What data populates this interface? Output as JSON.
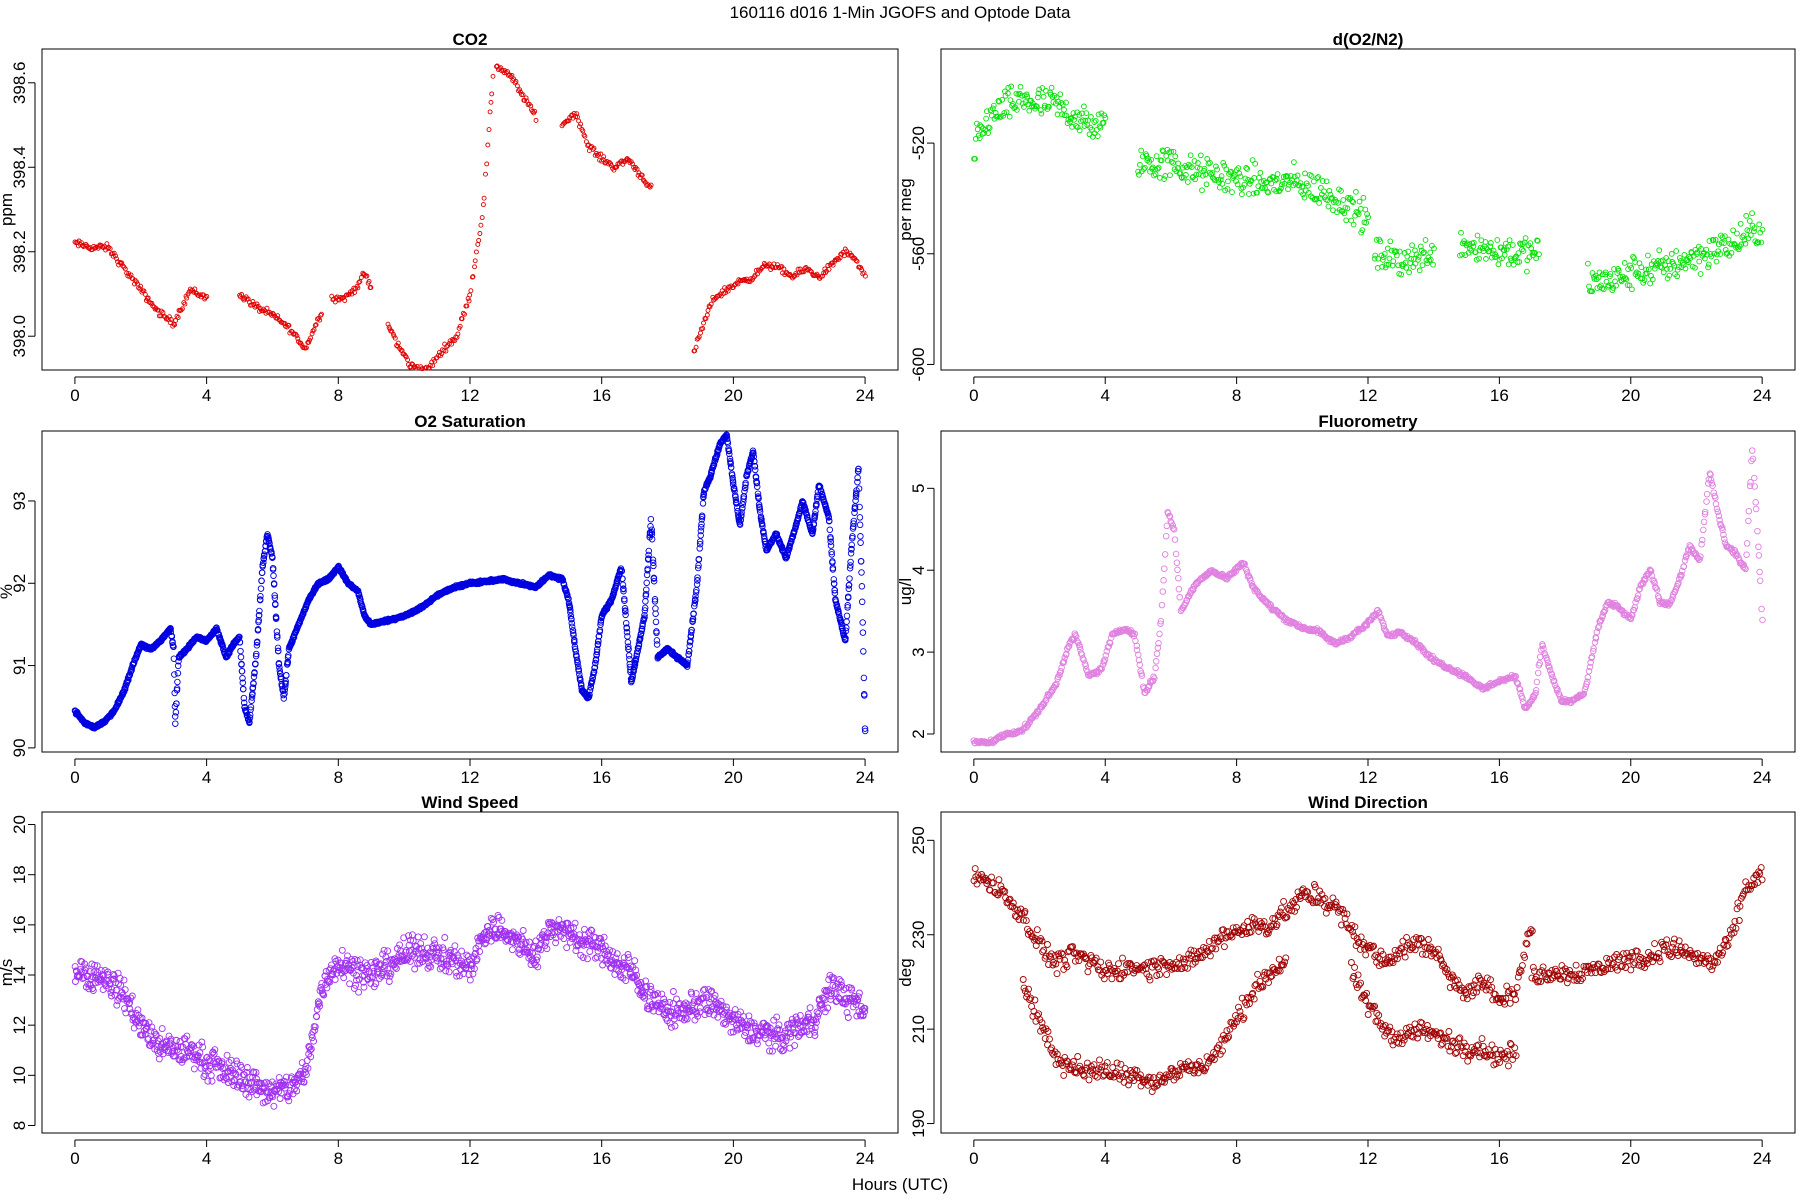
{
  "figure": {
    "title": "160116   d016   1-Min  JGOFS and Optode Data",
    "xlabel": "Hours (UTC)"
  },
  "chart_data": [
    {
      "type": "scatter",
      "title": "CO2",
      "xlabel": "",
      "ylabel": "ppm",
      "xlim": [
        -1,
        25
      ],
      "ylim": [
        397.92,
        398.68
      ],
      "xticks": [
        0,
        4,
        8,
        12,
        16,
        20,
        24
      ],
      "yticks": [
        398.0,
        398.2,
        398.4,
        398.6
      ],
      "ytick_labels": [
        "398.0",
        "398.2",
        "398.4",
        "398.6"
      ],
      "color": "#e00000",
      "marker_size": 2.0,
      "spread": 0.012,
      "points_per_hour": 30,
      "series": [
        {
          "x": [
            0,
            0.5,
            1.0,
            1.5,
            2.0,
            2.5,
            3.0,
            3.5,
            4.0
          ],
          "y": [
            398.22,
            398.21,
            398.21,
            398.16,
            398.11,
            398.06,
            398.03,
            398.11,
            398.09
          ]
        },
        {
          "x": [
            5.0,
            5.5,
            6.0,
            6.5,
            7.0,
            7.5
          ],
          "y": [
            398.1,
            398.07,
            398.05,
            398.02,
            397.97,
            398.06
          ]
        },
        {
          "x": [
            7.8,
            8.2,
            8.6,
            8.8,
            9.0
          ],
          "y": [
            398.09,
            398.09,
            398.12,
            398.15,
            398.11
          ]
        },
        {
          "x": [
            9.5,
            9.8,
            10.2,
            10.7,
            11.2,
            11.6,
            12.0,
            12.4,
            12.7
          ],
          "y": [
            398.03,
            397.98,
            397.93,
            397.92,
            397.97,
            398.0,
            398.1,
            398.3,
            398.62
          ]
        },
        {
          "x": [
            12.8,
            13.2,
            13.6,
            14.0
          ],
          "y": [
            398.64,
            398.62,
            398.57,
            398.52
          ]
        },
        {
          "x": [
            14.8,
            15.2,
            15.6,
            16.0,
            16.4,
            16.8,
            17.2,
            17.5
          ],
          "y": [
            398.5,
            398.53,
            398.45,
            398.42,
            398.4,
            398.42,
            398.38,
            398.35
          ]
        },
        {
          "x": [
            18.8,
            19.1,
            19.4,
            19.8,
            20.2,
            20.6,
            21.0,
            21.4,
            21.8,
            22.2,
            22.6,
            23.0,
            23.4,
            23.7,
            24.0
          ],
          "y": [
            397.96,
            398.03,
            398.09,
            398.11,
            398.13,
            398.14,
            398.17,
            398.16,
            398.14,
            398.16,
            398.14,
            398.17,
            398.2,
            398.18,
            398.14
          ]
        }
      ]
    },
    {
      "type": "scatter",
      "title": "d(O2/N2)",
      "xlabel": "",
      "ylabel": "per meg",
      "xlim": [
        -1,
        25
      ],
      "ylim": [
        -602,
        -486
      ],
      "xticks": [
        0,
        4,
        8,
        12,
        16,
        20,
        24
      ],
      "yticks": [
        -600,
        -560,
        -520
      ],
      "ytick_labels": [
        "-600",
        "-560",
        "-520"
      ],
      "color": "#00e000",
      "marker_size": 2.4,
      "spread": 9,
      "points_per_hour": 35,
      "series": [
        {
          "x": [
            0,
            0.5,
            1.0,
            1.5,
            2.0,
            2.5,
            3.0,
            3.5,
            4.0
          ],
          "y": [
            -522,
            -510,
            -507,
            -504,
            -506,
            -506,
            -510,
            -514,
            -514
          ]
        },
        {
          "x": [
            5.0,
            5.5,
            6.0,
            6.5,
            7.0,
            7.5,
            8.0,
            8.5,
            9.0,
            9.5,
            10.0,
            10.5,
            11.0,
            11.5,
            12.0
          ],
          "y": [
            -526,
            -528,
            -527,
            -530,
            -531,
            -532,
            -533,
            -534,
            -535,
            -534,
            -535,
            -537,
            -540,
            -543,
            -548
          ]
        },
        {
          "x": [
            12.2,
            12.7,
            13.2,
            13.7,
            14.0
          ],
          "y": [
            -560,
            -562,
            -562,
            -561,
            -558
          ]
        },
        {
          "x": [
            14.8,
            15.3,
            15.8,
            16.3,
            16.8,
            17.2
          ],
          "y": [
            -556,
            -557,
            -559,
            -559,
            -560,
            -560
          ]
        },
        {
          "x": [
            18.7,
            19.2,
            19.7,
            20.2,
            20.7,
            21.2,
            21.7,
            22.2,
            22.7,
            23.2,
            23.7,
            24.0
          ],
          "y": [
            -570,
            -570,
            -569,
            -566,
            -566,
            -564,
            -562,
            -560,
            -558,
            -556,
            -552,
            -551
          ]
        }
      ]
    },
    {
      "type": "scatter",
      "title": "O2 Saturation",
      "xlabel": "",
      "ylabel": "%",
      "xlim": [
        -1,
        25
      ],
      "ylim": [
        89.95,
        93.85
      ],
      "xticks": [
        0,
        4,
        8,
        12,
        16,
        20,
        24
      ],
      "yticks": [
        90,
        91,
        92,
        93
      ],
      "ytick_labels": [
        "90",
        "91",
        "92",
        "93"
      ],
      "color": "#0000e0",
      "marker_size": 2.8,
      "spread": 0.025,
      "points_per_hour": 100,
      "series": [
        {
          "x": [
            0,
            0.3,
            0.6,
            0.9,
            1.2,
            1.5,
            1.8,
            2.0,
            2.3,
            2.6,
            2.9,
            3.0,
            3.05,
            3.15,
            3.4,
            3.7,
            4.0,
            4.3,
            4.6,
            4.8,
            5.0,
            5.15,
            5.3,
            5.5,
            5.7,
            5.85,
            6.0,
            6.2,
            6.35,
            6.5,
            6.8,
            7.1,
            7.4,
            7.7,
            8.0,
            8.3,
            8.6,
            8.8,
            9.0,
            9.5,
            10.0,
            10.5,
            11.0,
            11.5,
            12.0,
            12.5,
            13.0,
            13.5,
            14.0,
            14.4,
            14.8,
            15.0,
            15.2,
            15.4,
            15.6,
            15.8,
            16.0,
            16.3,
            16.6,
            16.75,
            16.9,
            17.1,
            17.3,
            17.5,
            17.7,
            18.0,
            18.3,
            18.6,
            18.9,
            19.1,
            19.3,
            19.6,
            19.8,
            20.0,
            20.2,
            20.4,
            20.6,
            20.8,
            21.0,
            21.3,
            21.6,
            21.9,
            22.1,
            22.4,
            22.6,
            22.9,
            23.1,
            23.4,
            23.6,
            23.8,
            23.9,
            24.0
          ],
          "y": [
            90.45,
            90.3,
            90.25,
            90.32,
            90.45,
            90.7,
            91.05,
            91.25,
            91.2,
            91.3,
            91.45,
            91.2,
            90.3,
            91.1,
            91.2,
            91.35,
            91.3,
            91.45,
            91.1,
            91.25,
            91.35,
            90.5,
            90.3,
            91.1,
            92.2,
            92.6,
            92.3,
            91.0,
            90.6,
            91.2,
            91.5,
            91.8,
            92.0,
            92.05,
            92.2,
            92.0,
            91.9,
            91.6,
            91.5,
            91.55,
            91.6,
            91.7,
            91.85,
            91.95,
            92.0,
            92.02,
            92.05,
            92.0,
            91.95,
            92.1,
            92.05,
            91.8,
            91.2,
            90.7,
            90.6,
            91.0,
            91.6,
            91.8,
            92.2,
            91.5,
            90.8,
            91.2,
            91.6,
            92.8,
            91.1,
            91.2,
            91.1,
            91.0,
            92.0,
            93.1,
            93.3,
            93.7,
            93.8,
            93.2,
            92.7,
            93.3,
            93.6,
            92.9,
            92.4,
            92.6,
            92.3,
            92.7,
            93.0,
            92.6,
            93.2,
            92.8,
            91.8,
            91.3,
            92.5,
            93.4,
            92.0,
            90.2
          ]
        }
      ]
    },
    {
      "type": "scatter",
      "title": "Fluorometry",
      "xlabel": "",
      "ylabel": "ug/l",
      "xlim": [
        -1,
        25
      ],
      "ylim": [
        1.78,
        5.7
      ],
      "xticks": [
        0,
        4,
        8,
        12,
        16,
        20,
        24
      ],
      "yticks": [
        2,
        3,
        4,
        5
      ],
      "ytick_labels": [
        "2",
        "3",
        "4",
        "5"
      ],
      "color": "#e080e0",
      "marker_size": 2.8,
      "spread": 0.04,
      "points_per_hour": 40,
      "series": [
        {
          "x": [
            0,
            0.5,
            1.0,
            1.5,
            2.0,
            2.5,
            2.9,
            3.1,
            3.5,
            3.9,
            4.2,
            4.6,
            4.9,
            5.2,
            5.5,
            5.7,
            5.9,
            6.1,
            6.3,
            6.7,
            7.2,
            7.7,
            8.2,
            8.5,
            8.9,
            9.5,
            10.0,
            10.5,
            11.0,
            11.5,
            12.0,
            12.3,
            12.6,
            13.0,
            13.5,
            14.0,
            14.5,
            15.0,
            15.5,
            16.0,
            16.5,
            16.8,
            17.1,
            17.3,
            17.6,
            17.9,
            18.2,
            18.6,
            19.0,
            19.3,
            19.6,
            20.0,
            20.3,
            20.6,
            20.9,
            21.2,
            21.5,
            21.8,
            22.1,
            22.4,
            22.6,
            22.9,
            23.2,
            23.5,
            23.7,
            23.9,
            24.0
          ],
          "y": [
            1.9,
            1.9,
            2.0,
            2.05,
            2.3,
            2.6,
            3.1,
            3.2,
            2.7,
            2.8,
            3.2,
            3.3,
            3.2,
            2.5,
            2.7,
            3.4,
            4.7,
            4.5,
            3.5,
            3.8,
            4.0,
            3.9,
            4.1,
            3.8,
            3.6,
            3.4,
            3.3,
            3.25,
            3.1,
            3.2,
            3.35,
            3.5,
            3.2,
            3.25,
            3.1,
            2.9,
            2.8,
            2.7,
            2.55,
            2.65,
            2.7,
            2.3,
            2.5,
            3.1,
            2.7,
            2.4,
            2.4,
            2.5,
            3.3,
            3.6,
            3.55,
            3.4,
            3.8,
            4.0,
            3.6,
            3.6,
            3.9,
            4.3,
            4.1,
            5.2,
            4.8,
            4.3,
            4.2,
            4.0,
            5.5,
            4.2,
            3.4
          ]
        }
      ]
    },
    {
      "type": "scatter",
      "title": "Wind Speed",
      "xlabel": "",
      "ylabel": "m/s",
      "xlim": [
        -1,
        25
      ],
      "ylim": [
        7.7,
        20.5
      ],
      "xticks": [
        0,
        4,
        8,
        12,
        16,
        20,
        24
      ],
      "yticks": [
        8,
        10,
        12,
        14,
        16,
        18,
        20
      ],
      "ytick_labels": [
        "8",
        "10",
        "12",
        "14",
        "16",
        "18",
        "20"
      ],
      "color": "#a030f0",
      "marker_size": 3.0,
      "spread": 0.9,
      "points_per_hour": 55,
      "series": [
        {
          "x": [
            0,
            0.5,
            1.0,
            1.5,
            2.0,
            2.5,
            3.0,
            3.5,
            4.0,
            4.5,
            5.0,
            5.5,
            6.0,
            6.5,
            7.0,
            7.5,
            8.0,
            8.5,
            9.0,
            9.5,
            10.0,
            10.5,
            11.0,
            11.5,
            12.0,
            12.5,
            13.0,
            13.5,
            14.0,
            14.5,
            15.0,
            15.5,
            16.0,
            16.5,
            17.0,
            17.5,
            18.0,
            18.5,
            19.0,
            19.5,
            20.0,
            20.5,
            21.0,
            21.5,
            22.0,
            22.5,
            23.0,
            23.5,
            24.0
          ],
          "y": [
            14.2,
            14.0,
            13.8,
            13.2,
            12.0,
            11.2,
            11.0,
            11.0,
            10.5,
            10.2,
            10.0,
            9.6,
            9.3,
            9.5,
            10.0,
            13.5,
            14.6,
            14.2,
            14.0,
            14.4,
            14.8,
            15.0,
            14.8,
            14.6,
            14.3,
            15.8,
            15.8,
            15.2,
            14.8,
            16.0,
            15.6,
            15.4,
            15.0,
            14.4,
            14.0,
            13.0,
            12.5,
            12.6,
            12.9,
            12.8,
            12.1,
            11.8,
            11.7,
            11.5,
            12.0,
            12.3,
            13.6,
            13.0,
            12.5
          ]
        }
      ]
    },
    {
      "type": "scatter",
      "title": "Wind Direction",
      "xlabel": "",
      "ylabel": "deg",
      "xlim": [
        -1,
        25
      ],
      "ylim": [
        188,
        256
      ],
      "xticks": [
        0,
        4,
        8,
        12,
        16,
        20,
        24
      ],
      "yticks": [
        190,
        210,
        230,
        250
      ],
      "ytick_labels": [
        "190",
        "210",
        "230",
        "250"
      ],
      "color": "#a00000",
      "marker_size": 3.0,
      "spread": 3.2,
      "points_per_hour": 30,
      "series": [
        {
          "x": [
            0,
            0.5,
            1.0,
            1.5,
            2.0,
            2.5,
            3.0,
            3.5,
            4.0,
            4.5,
            5.0,
            5.5,
            6.0,
            6.5,
            7.0,
            7.5,
            8.0,
            8.5,
            9.0,
            9.5,
            10.0,
            10.5,
            11.0,
            11.5,
            12.0,
            12.5,
            13.0,
            13.5,
            14.0,
            14.5,
            15.0,
            15.5,
            16.0,
            16.5,
            17.0
          ],
          "y": [
            243,
            241,
            238,
            234,
            228,
            224,
            226,
            224,
            222,
            223,
            223,
            223,
            224,
            224,
            226,
            229,
            231,
            232,
            232,
            235,
            238,
            238,
            236,
            231,
            227,
            224,
            227,
            228,
            227,
            221,
            218,
            220,
            216,
            218,
            232
          ]
        },
        {
          "x": [
            1.5,
            2.0,
            2.5,
            3.0,
            3.5,
            4.0,
            4.5,
            5.0,
            5.5,
            6.0,
            6.5,
            7.0,
            7.5,
            8.0,
            8.5,
            9.0,
            9.5
          ],
          "y": [
            220,
            212,
            204,
            202,
            201,
            201,
            201,
            200,
            199,
            200,
            202,
            202,
            206,
            212,
            218,
            222,
            224
          ]
        },
        {
          "x": [
            11.5,
            12.0,
            12.5,
            13.0,
            13.5,
            14.0,
            14.5,
            15.0,
            15.5,
            16.0,
            16.5
          ],
          "y": [
            222,
            215,
            210,
            208,
            210,
            209,
            207,
            206,
            206,
            204,
            205
          ]
        },
        {
          "x": [
            17.0,
            17.5,
            18.0,
            18.5,
            19.0,
            19.5,
            20.0,
            20.5,
            21.0,
            21.5,
            22.0,
            22.5,
            23.0,
            23.5,
            24.0
          ],
          "y": [
            221,
            222,
            222,
            222,
            223,
            224,
            225,
            225,
            227,
            227,
            225,
            224,
            228,
            240,
            243
          ]
        }
      ]
    }
  ]
}
